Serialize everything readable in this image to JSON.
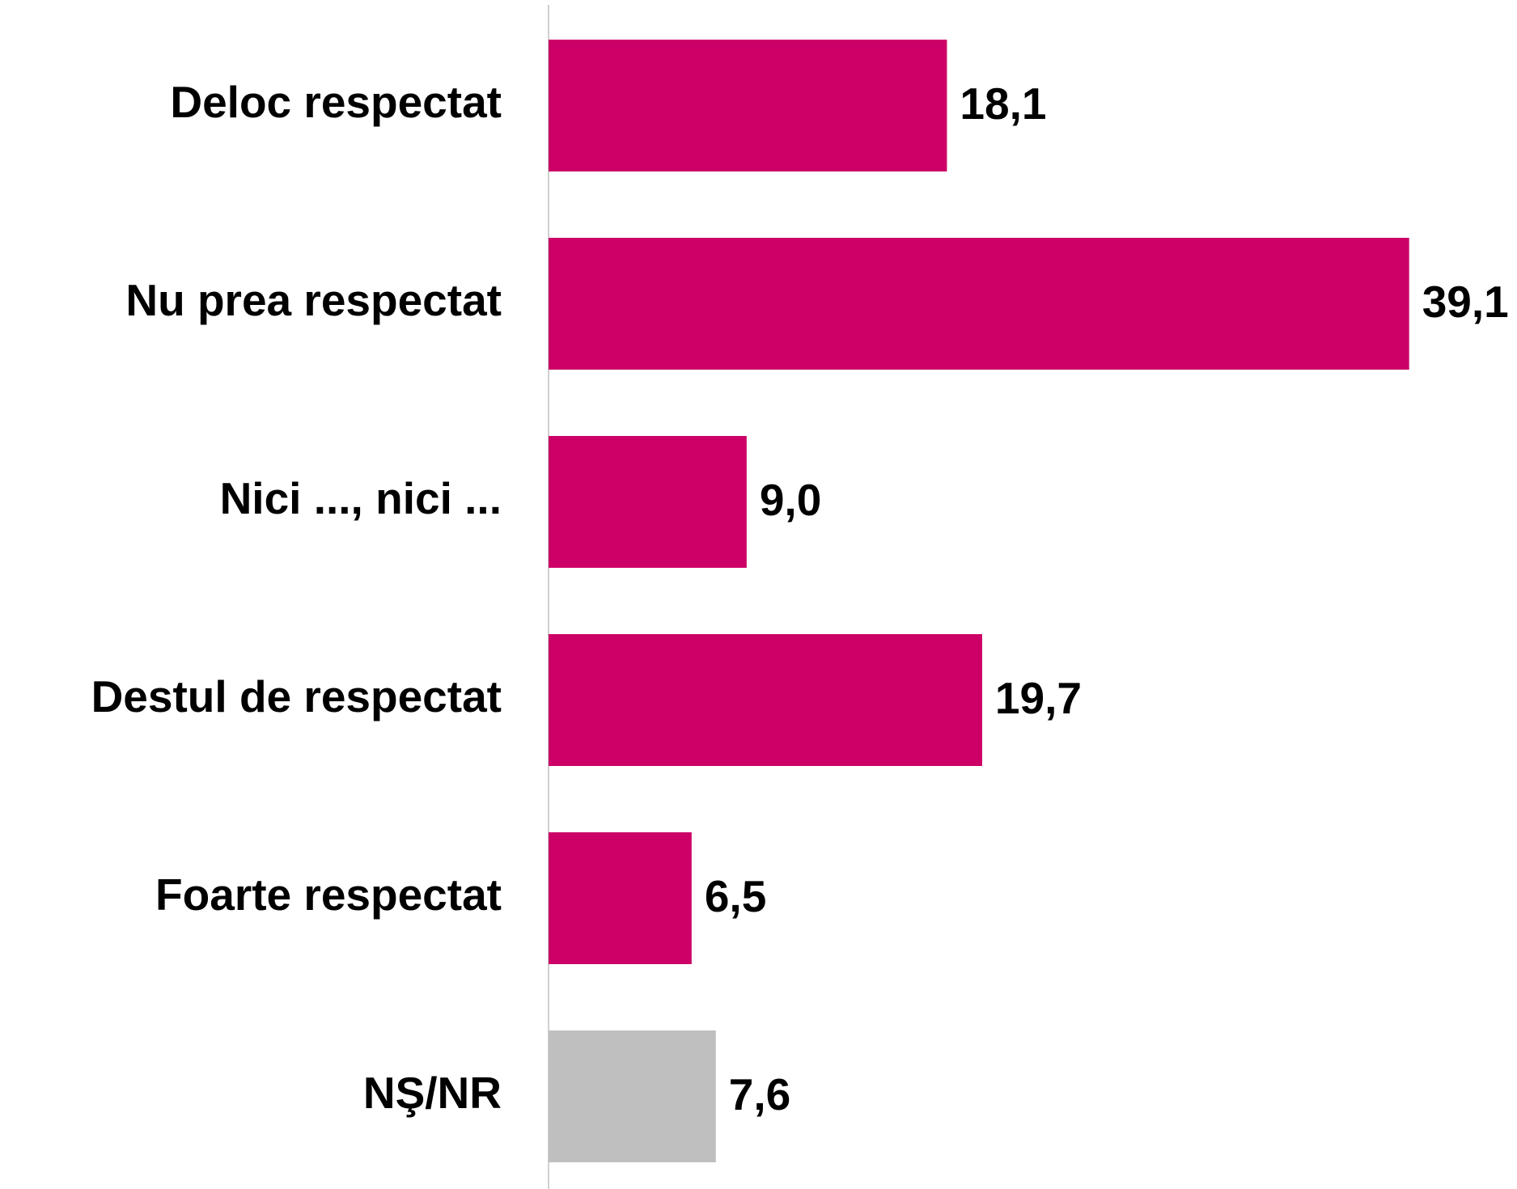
{
  "chart_data": {
    "type": "bar",
    "orientation": "horizontal",
    "categories": [
      "Deloc respectat",
      "Nu prea respectat",
      "Nici ..., nici ...",
      "Destul de respectat",
      "Foarte respectat",
      "NŞ/NR"
    ],
    "values": [
      18.1,
      39.1,
      9.0,
      19.7,
      6.5,
      7.6
    ],
    "value_labels": [
      "18,1",
      "39,1",
      "9,0",
      "19,7",
      "6,5",
      "7,6"
    ],
    "colors": [
      "#cc0066",
      "#cc0066",
      "#cc0066",
      "#cc0066",
      "#cc0066",
      "#bfbfbf"
    ],
    "xlim": [
      0,
      44
    ]
  }
}
